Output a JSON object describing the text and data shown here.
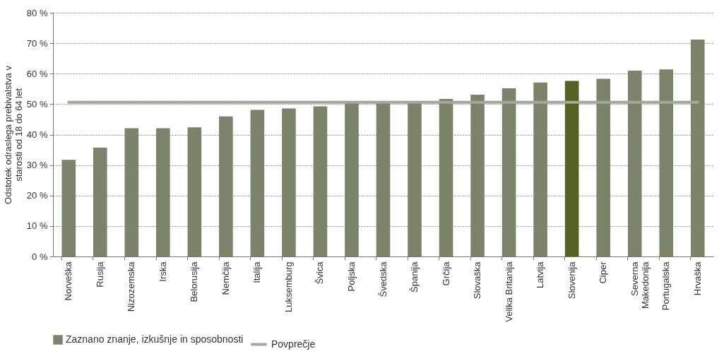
{
  "chart_data": {
    "type": "bar",
    "ylabel": "Odstotek odraslega prebivalstva v starosti od 18 do 64 let",
    "categories": [
      "Norveška",
      "Rusija",
      "Nizozemska",
      "Irska",
      "Belorusija",
      "Nemčija",
      "Italija",
      "Luksemburg",
      "Švica",
      "Poljska",
      "Švedska",
      "Španija",
      "Grčija",
      "Slovaška",
      "Velika Britanija",
      "Latvija",
      "Slovenija",
      "Ciper",
      "Severna Makedonija",
      "Portugalska",
      "Hrvaška"
    ],
    "series": [
      {
        "name": "Zaznano znanje, izkušnje in sposobnosti",
        "color": "#7b836a",
        "colors": [
          "#7b836a",
          "#7b836a",
          "#7b836a",
          "#7b836a",
          "#7b836a",
          "#7b836a",
          "#7b836a",
          "#7b836a",
          "#7b836a",
          "#7b836a",
          "#7b836a",
          "#7b836a",
          "#7b836a",
          "#7b836a",
          "#7b836a",
          "#7b836a",
          "#536125",
          "#7b836a",
          "#7b836a",
          "#7b836a",
          "#7b836a"
        ],
        "values": [
          31.7,
          35.7,
          42.1,
          42.1,
          42.4,
          46.0,
          48.1,
          48.6,
          49.3,
          50.3,
          50.4,
          50.5,
          51.7,
          53.1,
          55.2,
          57.1,
          57.6,
          58.3,
          61.0,
          61.4,
          71.2
        ]
      },
      {
        "type": "line",
        "name": "Povprečje",
        "color": "#a3a89c",
        "values": [
          50.6,
          50.6,
          50.6,
          50.6,
          50.6,
          50.6,
          50.6,
          50.6,
          50.6,
          50.6,
          50.6,
          50.6,
          50.6,
          50.6,
          50.6,
          50.6,
          50.6,
          50.6,
          50.6,
          50.6,
          50.6
        ]
      }
    ],
    "ylim": [
      0,
      80
    ],
    "yticks": [
      {
        "value": 0,
        "label": "0 %"
      },
      {
        "value": 10,
        "label": "10 %"
      },
      {
        "value": 20,
        "label": "20 %"
      },
      {
        "value": 30,
        "label": "30 %"
      },
      {
        "value": 40,
        "label": "40 %"
      },
      {
        "value": 50,
        "label": "50 %"
      },
      {
        "value": 60,
        "label": "60 %"
      },
      {
        "value": 70,
        "label": "70 %"
      },
      {
        "value": 80,
        "label": "80 %"
      }
    ],
    "grid": "y",
    "legend": "bottom"
  }
}
